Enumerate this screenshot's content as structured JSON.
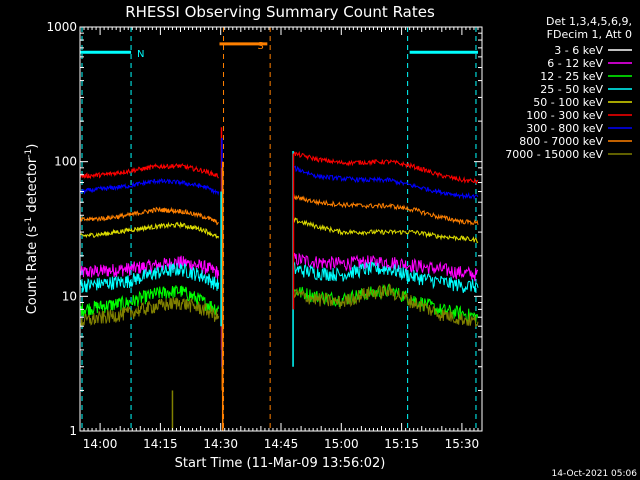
{
  "chart_data": {
    "type": "line",
    "title": "RHESSI Observing Summary Count Rates",
    "xlabel": "Start Time (11-Mar-09 13:56:02)",
    "ylabel_main": "Count Rate (s",
    "ylabel_sup1": "-1",
    "ylabel_mid": " detector",
    "ylabel_sup2": "-1",
    "ylabel_end": ")",
    "y_scale": "log",
    "ylim": [
      1,
      1000
    ],
    "xlim_min": [
      -1,
      99
    ],
    "y_ticks": [
      {
        "value": 1,
        "label": "1"
      },
      {
        "value": 10,
        "label": "10"
      },
      {
        "value": 100,
        "label": "100"
      },
      {
        "value": 1000,
        "label": "1000"
      }
    ],
    "x_ticks": [
      {
        "value": 4,
        "label": "14:00"
      },
      {
        "value": 19,
        "label": "14:15"
      },
      {
        "value": 34,
        "label": "14:30"
      },
      {
        "value": 49,
        "label": "14:45"
      },
      {
        "value": 64,
        "label": "15:00"
      },
      {
        "value": 79,
        "label": "15:15"
      },
      {
        "value": 94,
        "label": "15:30"
      }
    ],
    "legend_header": [
      "Det 1,3,4,5,6,9,",
      "FDecim 1, Att 0"
    ],
    "legend_position": "right",
    "timestamp": "14-Oct-2021 05:06",
    "flags": [
      {
        "label": "N",
        "color": "#00ffff",
        "segments": [
          [
            -1,
            11.7
          ],
          [
            81,
            98
          ]
        ],
        "value": 650
      },
      {
        "label": "S",
        "color": "#ff8000",
        "segments": [
          [
            33.7,
            45.6
          ]
        ],
        "value": 750
      }
    ],
    "gaps": [
      {
        "color": "#00ffff",
        "times": [
          -0.5,
          11.7,
          80.5,
          97.5
        ]
      },
      {
        "color": "#ff8000",
        "times": [
          34.7,
          46.3
        ]
      }
    ],
    "series": [
      {
        "name": "3 - 6 keV",
        "color": "#ffffff",
        "values": []
      },
      {
        "name": "6 - 12 keV",
        "color": "#ff00ff",
        "segments": [
          {
            "t": [
              -1,
              5,
              11,
              18,
              24,
              30,
              33.5
            ],
            "y": [
              15,
              15.5,
              16,
              17,
              18,
              16.5,
              15
            ]
          },
          {
            "t": [
              52,
              58,
              64,
              70,
              76,
              82,
              88,
              94,
              98
            ],
            "y": [
              19,
              18,
              17.5,
              18,
              18,
              17,
              16,
              15,
              14.5
            ]
          }
        ]
      },
      {
        "name": "12 - 25 keV",
        "color": "#00ff00",
        "segments": [
          {
            "t": [
              -1,
              5,
              11,
              18,
              24,
              30,
              33.5
            ],
            "y": [
              8,
              8.5,
              9,
              10.5,
              11,
              9,
              8
            ]
          },
          {
            "t": [
              52,
              58,
              64,
              70,
              76,
              82,
              88,
              94,
              98
            ],
            "y": [
              11,
              10,
              9.5,
              10.5,
              11,
              9.5,
              8,
              7.5,
              7
            ]
          }
        ]
      },
      {
        "name": "25 - 50 keV",
        "color": "#00ffff",
        "segments": [
          {
            "t": [
              -1,
              5,
              11,
              18,
              24,
              30,
              33.5
            ],
            "y": [
              12,
              12.5,
              13,
              15,
              16,
              14,
              12
            ]
          },
          {
            "t": [
              52,
              58,
              64,
              70,
              76,
              82,
              88,
              94,
              98
            ],
            "y": [
              16,
              15,
              14.5,
              16,
              16,
              14,
              13,
              12,
              12
            ]
          }
        ]
      },
      {
        "name": "50 - 100 keV",
        "color": "#dddd00",
        "segments": [
          {
            "t": [
              -1,
              5,
              11,
              18,
              24,
              30,
              33.5
            ],
            "y": [
              28,
              29,
              31,
              33,
              34,
              31,
              27
            ]
          },
          {
            "t": [
              52,
              58,
              64,
              70,
              76,
              82,
              88,
              94,
              98
            ],
            "y": [
              37,
              33,
              30,
              30,
              30,
              30,
              28,
              27,
              26
            ]
          }
        ]
      },
      {
        "name": "100 - 300 keV",
        "color": "#ff0000",
        "segments": [
          {
            "t": [
              -1,
              5,
              11,
              18,
              24,
              30,
              33.5
            ],
            "y": [
              78,
              80,
              85,
              92,
              93,
              85,
              78
            ]
          },
          {
            "t": [
              52,
              58,
              64,
              70,
              76,
              82,
              88,
              94,
              98
            ],
            "y": [
              115,
              104,
              98,
              99,
              100,
              92,
              80,
              73,
              71
            ]
          }
        ]
      },
      {
        "name": "300 - 800 keV",
        "color": "#0000ff",
        "segments": [
          {
            "t": [
              -1,
              5,
              11,
              18,
              24,
              30,
              33.5
            ],
            "y": [
              60,
              63,
              66,
              72,
              70,
              65,
              58
            ]
          },
          {
            "t": [
              52,
              58,
              64,
              70,
              76,
              82,
              88,
              94,
              98
            ],
            "y": [
              90,
              78,
              75,
              73,
              73,
              66,
              60,
              56,
              55
            ]
          }
        ]
      },
      {
        "name": "800 - 7000 keV",
        "color": "#ff8000",
        "segments": [
          {
            "t": [
              -1,
              5,
              11,
              18,
              24,
              30,
              33.5
            ],
            "y": [
              37,
              38,
              40,
              44,
              43,
              39,
              35
            ]
          },
          {
            "t": [
              52,
              58,
              64,
              70,
              76,
              82,
              88,
              94,
              98
            ],
            "y": [
              55,
              50,
              48,
              47,
              47,
              44,
              39,
              36,
              35
            ]
          }
        ]
      },
      {
        "name": "7000 - 15000 keV",
        "color": "#808000",
        "segments": [
          {
            "t": [
              -1,
              5,
              11,
              18,
              24,
              30,
              33.5
            ],
            "y": [
              6.5,
              7,
              7.5,
              8.5,
              9,
              8,
              7
            ]
          },
          {
            "t": [
              52,
              58,
              64,
              70,
              76,
              82,
              88,
              94,
              98
            ],
            "y": [
              10.5,
              9.5,
              9,
              10.5,
              11,
              9,
              7.5,
              6.8,
              6.5
            ]
          }
        ]
      }
    ]
  }
}
